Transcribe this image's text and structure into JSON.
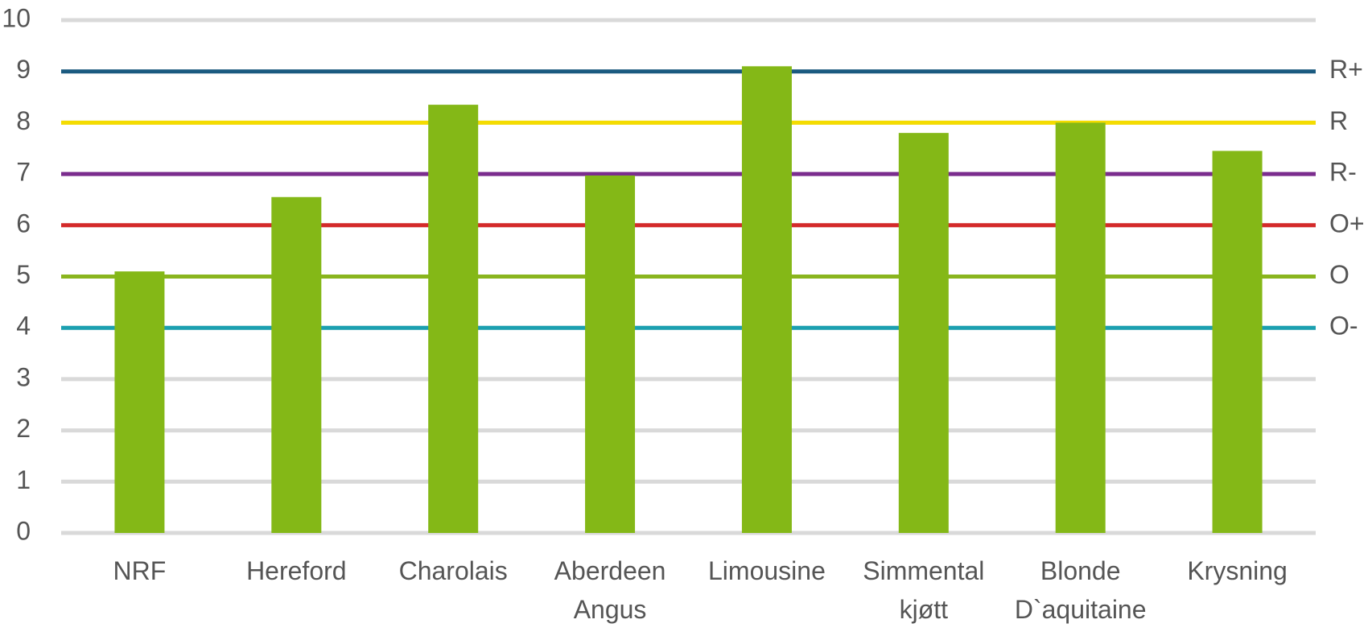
{
  "chart_data": {
    "type": "bar",
    "categories": [
      [
        "NRF"
      ],
      [
        "Hereford"
      ],
      [
        "Charolais"
      ],
      [
        "Aberdeen",
        "Angus"
      ],
      [
        "Limousine"
      ],
      [
        "Simmental",
        "kjøtt"
      ],
      [
        "Blonde",
        "D`aquitaine"
      ],
      [
        "Krysning"
      ]
    ],
    "values": [
      5.1,
      6.55,
      8.35,
      6.97,
      9.1,
      7.8,
      8.0,
      7.45
    ],
    "color": "#84b817",
    "ylim": [
      0,
      10
    ],
    "yticks": [
      0,
      1,
      2,
      3,
      4,
      5,
      6,
      7,
      8,
      9,
      10
    ],
    "grid": true,
    "reference_lines": [
      {
        "value": 9,
        "label": "R+",
        "color": "#1a5a80"
      },
      {
        "value": 8,
        "label": "R",
        "color": "#f4dc00"
      },
      {
        "value": 7,
        "label": "R-",
        "color": "#7b2d8e"
      },
      {
        "value": 6,
        "label": "O+",
        "color": "#d42a2a"
      },
      {
        "value": 5,
        "label": "O",
        "color": "#8ab51e"
      },
      {
        "value": 4,
        "label": "O-",
        "color": "#1ba0b0"
      }
    ]
  }
}
